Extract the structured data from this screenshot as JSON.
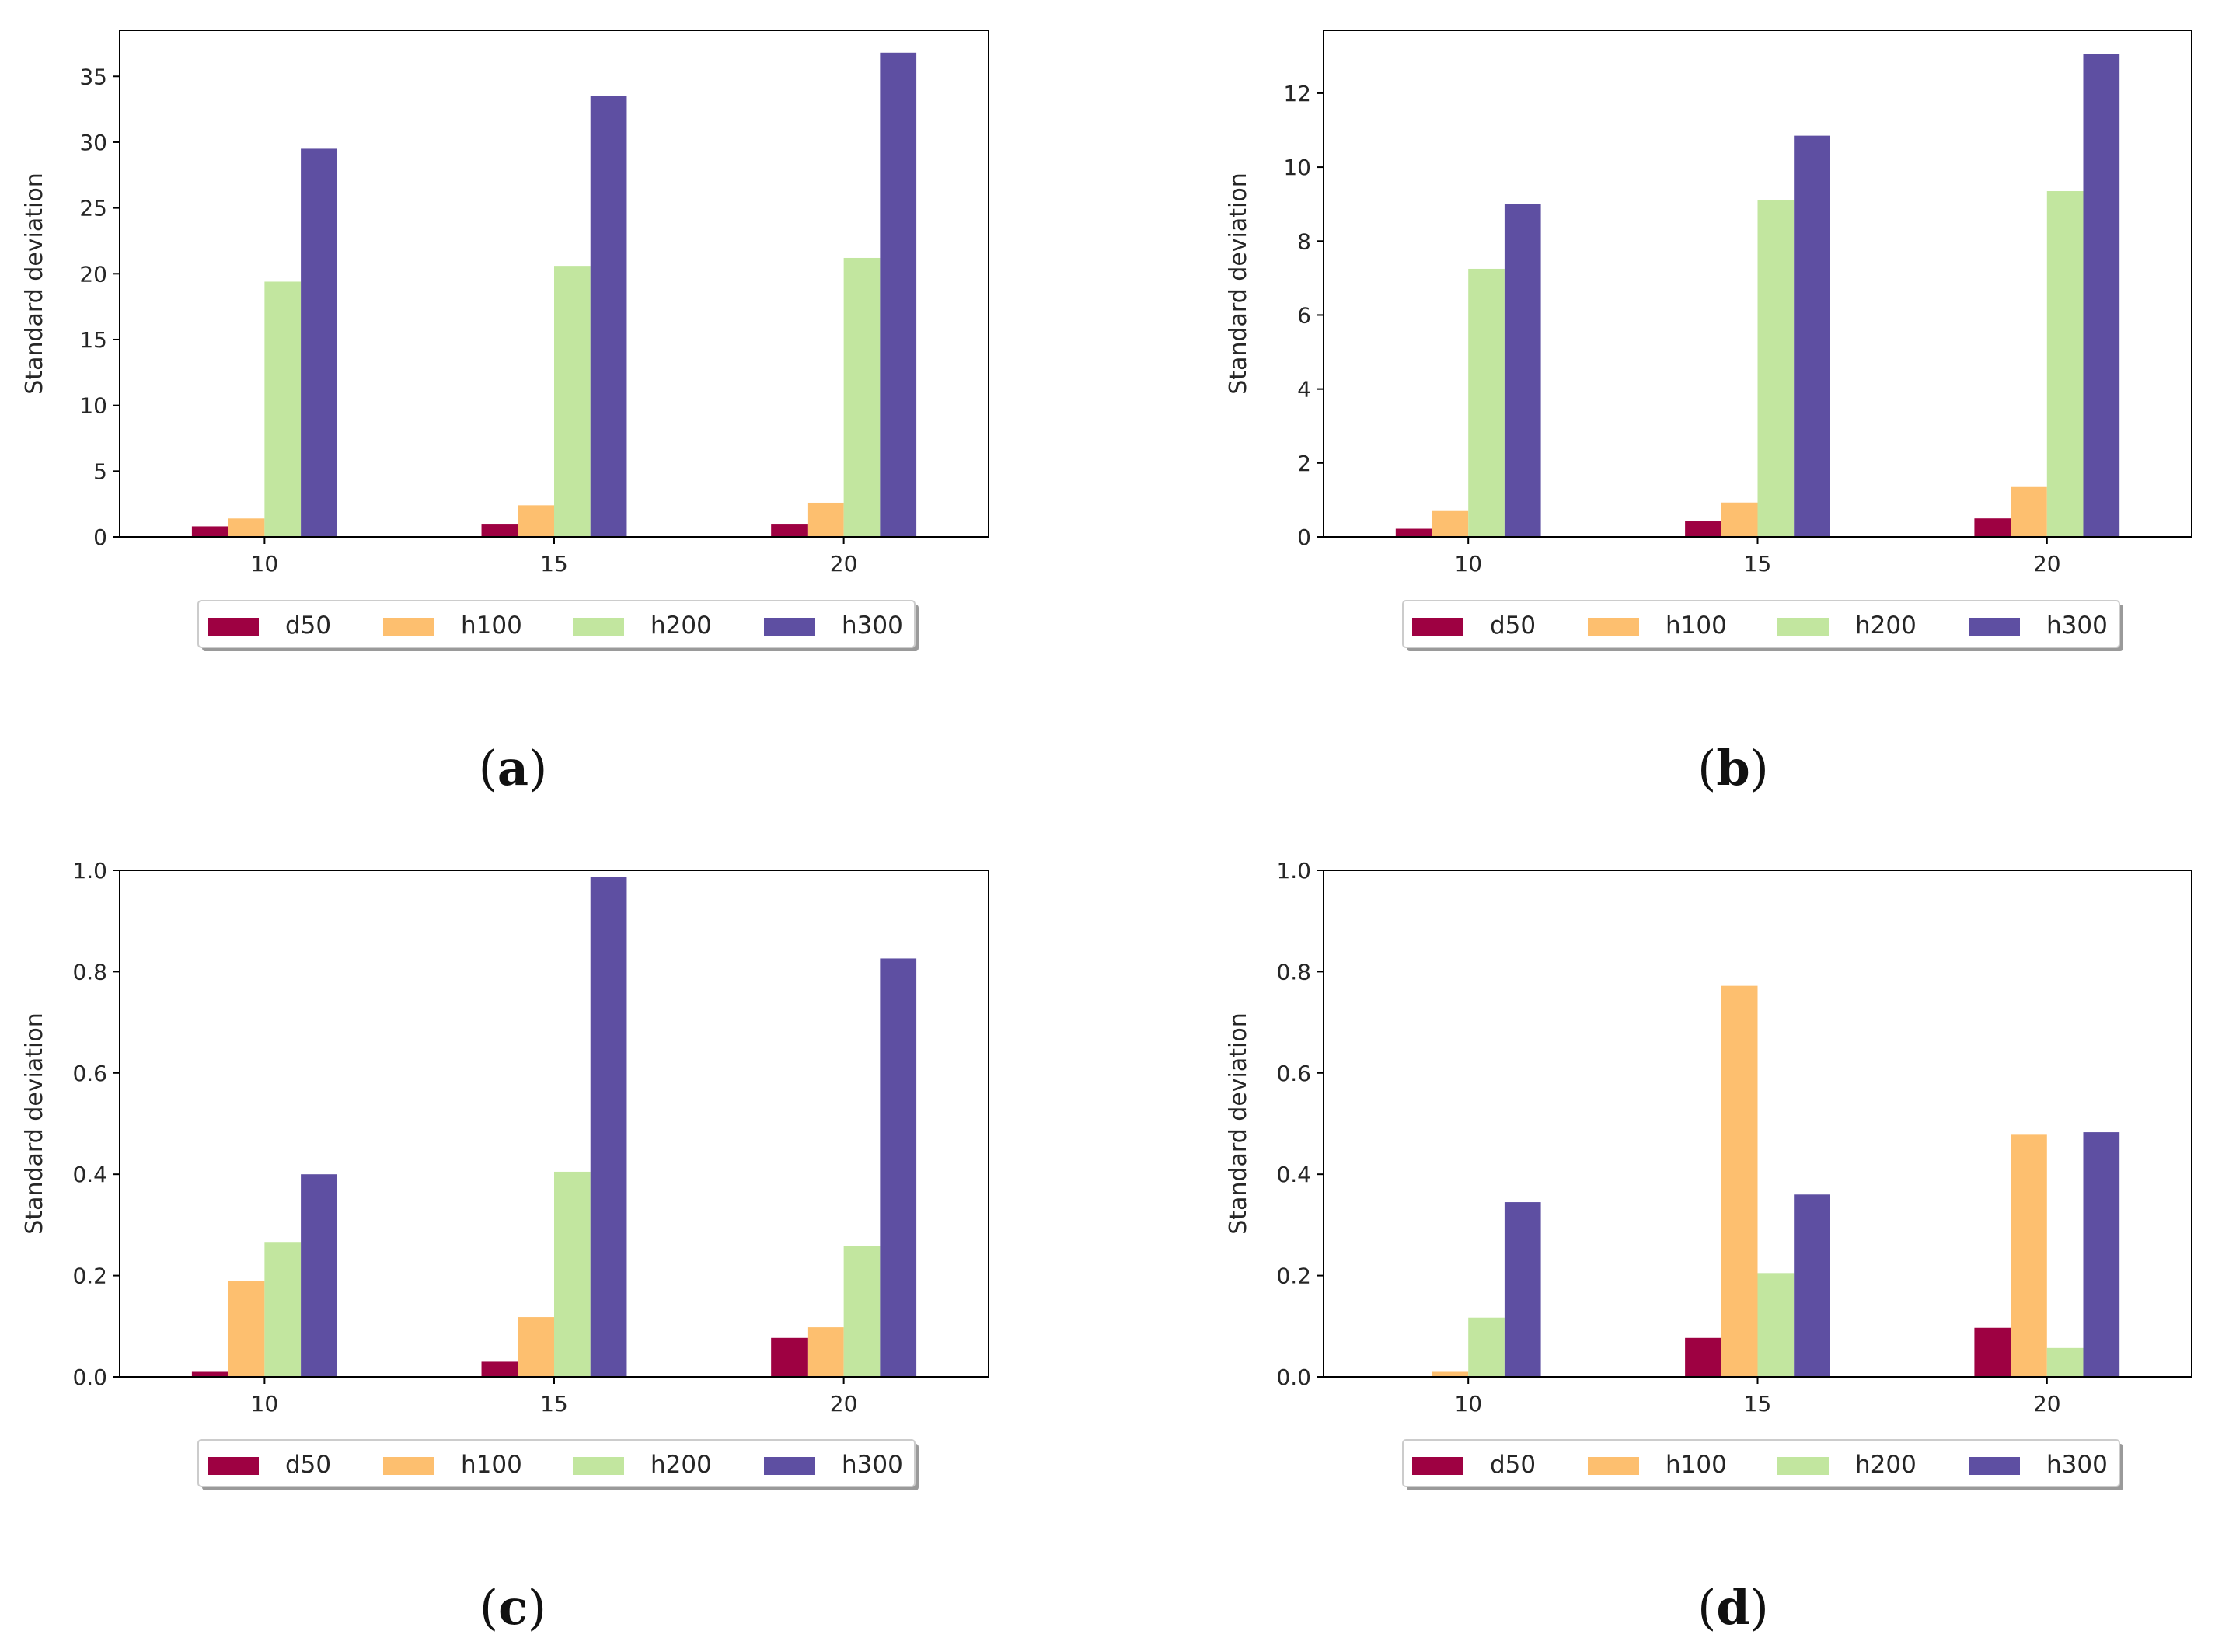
{
  "figure": {
    "colors": {
      "d50": "#9e0142",
      "h100": "#fdbf6f",
      "h200": "#c2e69f",
      "h300": "#5e4fa2"
    }
  },
  "chart_data": [
    {
      "type": "bar",
      "panel": "a",
      "caption_letter": "a",
      "categories": [
        "10",
        "15",
        "20"
      ],
      "ylabel": "Standard deviation",
      "xlabel": "",
      "ylim": [
        0,
        38.5
      ],
      "yticks": [
        0,
        5,
        10,
        15,
        20,
        25,
        30,
        35
      ],
      "ytick_labels": [
        "0",
        "5",
        "10",
        "15",
        "20",
        "25",
        "30",
        "35"
      ],
      "legend": [
        "d50",
        "h100",
        "h200",
        "h300"
      ],
      "legend_position": "below",
      "series": [
        {
          "name": "d50",
          "values": [
            0.8,
            1.0,
            1.0
          ]
        },
        {
          "name": "h100",
          "values": [
            1.4,
            2.4,
            2.6
          ]
        },
        {
          "name": "h200",
          "values": [
            19.4,
            20.6,
            21.2
          ]
        },
        {
          "name": "h300",
          "values": [
            29.5,
            33.5,
            36.8
          ]
        }
      ]
    },
    {
      "type": "bar",
      "panel": "b",
      "caption_letter": "b",
      "categories": [
        "10",
        "15",
        "20"
      ],
      "ylabel": "Standard deviation",
      "xlabel": "",
      "ylim": [
        0,
        13.7
      ],
      "yticks": [
        0,
        2,
        4,
        6,
        8,
        10,
        12
      ],
      "ytick_labels": [
        "0",
        "2",
        "4",
        "6",
        "8",
        "10",
        "12"
      ],
      "legend": [
        "d50",
        "h100",
        "h200",
        "h300"
      ],
      "legend_position": "below",
      "series": [
        {
          "name": "d50",
          "values": [
            0.22,
            0.42,
            0.5
          ]
        },
        {
          "name": "h100",
          "values": [
            0.72,
            0.93,
            1.35
          ]
        },
        {
          "name": "h200",
          "values": [
            7.25,
            9.1,
            9.35
          ]
        },
        {
          "name": "h300",
          "values": [
            9.0,
            10.85,
            13.05
          ]
        }
      ]
    },
    {
      "type": "bar",
      "panel": "c",
      "caption_letter": "c",
      "categories": [
        "10",
        "15",
        "20"
      ],
      "ylabel": "Standard deviation",
      "xlabel": "",
      "ylim": [
        0,
        1.0
      ],
      "yticks": [
        0,
        0.2,
        0.4,
        0.6,
        0.8,
        1.0
      ],
      "ytick_labels": [
        "0.0",
        "0.2",
        "0.4",
        "0.6",
        "0.8",
        "1.0"
      ],
      "legend": [
        "d50",
        "h100",
        "h200",
        "h300"
      ],
      "legend_position": "below",
      "series": [
        {
          "name": "d50",
          "values": [
            0.01,
            0.03,
            0.077
          ]
        },
        {
          "name": "h100",
          "values": [
            0.19,
            0.118,
            0.098
          ]
        },
        {
          "name": "h200",
          "values": [
            0.265,
            0.405,
            0.258
          ]
        },
        {
          "name": "h300",
          "values": [
            0.4,
            0.987,
            0.826
          ]
        }
      ]
    },
    {
      "type": "bar",
      "panel": "d",
      "caption_letter": "d",
      "categories": [
        "10",
        "15",
        "20"
      ],
      "ylabel": "Standard deviation",
      "xlabel": "",
      "ylim": [
        0,
        1.0
      ],
      "yticks": [
        0,
        0.2,
        0.4,
        0.6,
        0.8,
        1.0
      ],
      "ytick_labels": [
        "0.0",
        "0.2",
        "0.4",
        "0.6",
        "0.8",
        "1.0"
      ],
      "legend": [
        "d50",
        "h100",
        "h200",
        "h300"
      ],
      "legend_position": "below",
      "series": [
        {
          "name": "d50",
          "values": [
            0.0,
            0.077,
            0.097
          ]
        },
        {
          "name": "h100",
          "values": [
            0.01,
            0.772,
            0.478
          ]
        },
        {
          "name": "h200",
          "values": [
            0.117,
            0.205,
            0.057
          ]
        },
        {
          "name": "h300",
          "values": [
            0.345,
            0.36,
            0.483
          ]
        }
      ]
    }
  ]
}
